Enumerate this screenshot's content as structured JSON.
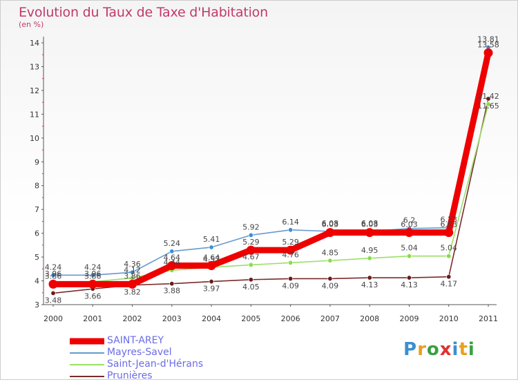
{
  "chart_data": {
    "type": "line",
    "title": "Evolution du Taux de Taxe d'Habitation",
    "subtitle": "(en %)",
    "x": [
      "2000",
      "2001",
      "2002",
      "2003",
      "2004",
      "2005",
      "2006",
      "2007",
      "2008",
      "2009",
      "2010",
      "2011"
    ],
    "ylim": [
      3,
      14
    ],
    "yticks": [
      3,
      4,
      5,
      6,
      7,
      8,
      9,
      10,
      11,
      12,
      13,
      14
    ],
    "grid": false,
    "series": [
      {
        "name": "SAINT-AREY",
        "color": "#ee0000",
        "width": "thick",
        "values": [
          3.86,
          3.86,
          3.86,
          4.64,
          4.64,
          5.29,
          5.29,
          6.03,
          6.03,
          6.03,
          6.03,
          13.58
        ],
        "labels": [
          "3.86",
          "3.86",
          "3.86",
          "4.64",
          "4.64",
          "5.29",
          "5.29",
          "6.03",
          "6.03",
          "6.03",
          "6.03",
          "13.58"
        ]
      },
      {
        "name": "Mayres-Savel",
        "color": "#6699cc",
        "marker": "#3c8fd9",
        "values": [
          4.24,
          4.24,
          4.36,
          5.24,
          5.41,
          5.92,
          6.14,
          6.08,
          6.08,
          6.2,
          6.23,
          13.81
        ],
        "labels": [
          "4.24",
          "4.24",
          "4.36",
          "5.24",
          "5.41",
          "5.92",
          "6.14",
          "6.08",
          "6.08",
          "6.2",
          "6.23",
          "13.81"
        ]
      },
      {
        "name": "Saint-Jean-d'Hérans",
        "color": "#99e066",
        "marker": "#88dd44",
        "values": [
          3.96,
          3.96,
          4.12,
          4.44,
          4.57,
          4.67,
          4.76,
          4.85,
          4.95,
          5.04,
          5.04,
          11.42
        ],
        "labels": [
          "3.96",
          "3.96",
          "4.12",
          "4.44",
          "4.57",
          "4.67",
          "4.76",
          "4.85",
          "4.95",
          "5.04",
          "5.04",
          "11.42"
        ]
      },
      {
        "name": "Prunières",
        "color": "#7a2a2a",
        "marker": "#6b1c1c",
        "values": [
          3.48,
          3.66,
          3.82,
          3.88,
          3.97,
          4.05,
          4.09,
          4.09,
          4.13,
          4.13,
          4.17,
          11.65
        ],
        "labels": [
          "3.48",
          "3.66",
          "3.82",
          "3.88",
          "3.97",
          "4.05",
          "4.09",
          "4.09",
          "4.13",
          "4.13",
          "4.17",
          "11.65"
        ]
      }
    ],
    "legend_position": "bottom-left"
  },
  "logo": {
    "letters": [
      "P",
      "r",
      "o",
      "x",
      "i",
      "t",
      "i"
    ],
    "colors": [
      "#3a8fd0",
      "#e8a020",
      "#3aa040",
      "#e03030",
      "#3a8fd0",
      "#e8a020",
      "#3aa040"
    ]
  }
}
